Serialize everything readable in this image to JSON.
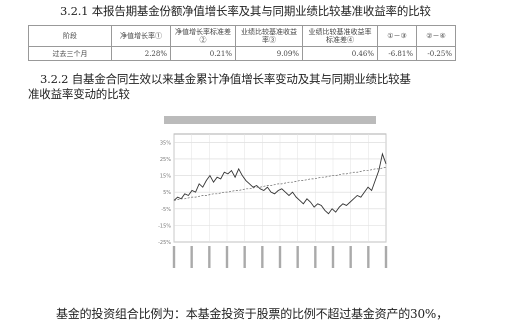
{
  "section1": {
    "heading": "3.2.1  本报告期基金份额净值增长率及其与同期业绩比较基准收益率的比较",
    "table": {
      "headers": [
        "阶段",
        "净值增长率①",
        "净值增长率标准差②",
        "业绩比较基准收益率③",
        "业绩比较基准收益率标准差④",
        "①－③",
        "②－④"
      ],
      "rows": [
        [
          "过去三个月",
          "2.28%",
          "0.21%",
          "9.09%",
          "0.46%",
          "-6.81%",
          "-0.25%"
        ]
      ]
    }
  },
  "section2": {
    "heading_line1": "3.2.2  自基金合同生效以来基金累计净值增长率变动及其与同期业绩比较基",
    "heading_line2": "准收益率变动的比较"
  },
  "chart_data": {
    "type": "line",
    "ylim": [
      -25,
      40
    ],
    "y_ticks": [
      35,
      25,
      15,
      5,
      -5,
      -15,
      -25
    ],
    "x": [
      0,
      1,
      2,
      3,
      4,
      5,
      6,
      7,
      8,
      9,
      10,
      11,
      12,
      13,
      14,
      15,
      16,
      17,
      18,
      19,
      20,
      21,
      22,
      23,
      24,
      25,
      26,
      27,
      28,
      29,
      30,
      31,
      32,
      33,
      34,
      35,
      36,
      37,
      38,
      39,
      40,
      41,
      42,
      43,
      44,
      45,
      46,
      47,
      48,
      49,
      50,
      51,
      52,
      53,
      54,
      55,
      56,
      57,
      58,
      59
    ],
    "series": [
      {
        "color": "#333333",
        "style": "solid",
        "values": [
          0,
          2,
          1,
          4,
          3,
          6,
          5,
          10,
          8,
          12,
          15,
          11,
          14,
          13,
          17,
          16,
          18,
          14,
          19,
          15,
          12,
          10,
          8,
          9,
          7,
          6,
          8,
          5,
          4,
          6,
          7,
          5,
          3,
          5,
          2,
          0,
          -2,
          1,
          -1,
          -4,
          -2,
          -3,
          -6,
          -8,
          -5,
          -7,
          -4,
          -2,
          -3,
          -1,
          1,
          3,
          2,
          5,
          8,
          6,
          12,
          18,
          28,
          22
        ]
      },
      {
        "color": "#666666",
        "style": "dashed",
        "values": [
          0,
          0.5,
          1,
          1,
          1.5,
          2,
          2,
          2.5,
          3,
          3,
          3.5,
          4,
          4,
          4.5,
          5,
          5,
          5.5,
          6,
          6,
          6.5,
          7,
          7,
          7.5,
          8,
          8,
          8.5,
          9,
          9,
          9.5,
          10,
          10,
          10.5,
          11,
          11,
          11.5,
          12,
          12,
          12.5,
          13,
          13,
          13.5,
          14,
          14,
          14.5,
          15,
          15,
          15.5,
          16,
          16,
          16.5,
          17,
          17,
          17.5,
          18,
          18,
          18.5,
          19,
          19,
          19.5,
          20
        ]
      }
    ]
  },
  "footer": {
    "text": "基金的投资组合比例为：本基金投资于股票的比例不超过基金资产的30%，"
  }
}
